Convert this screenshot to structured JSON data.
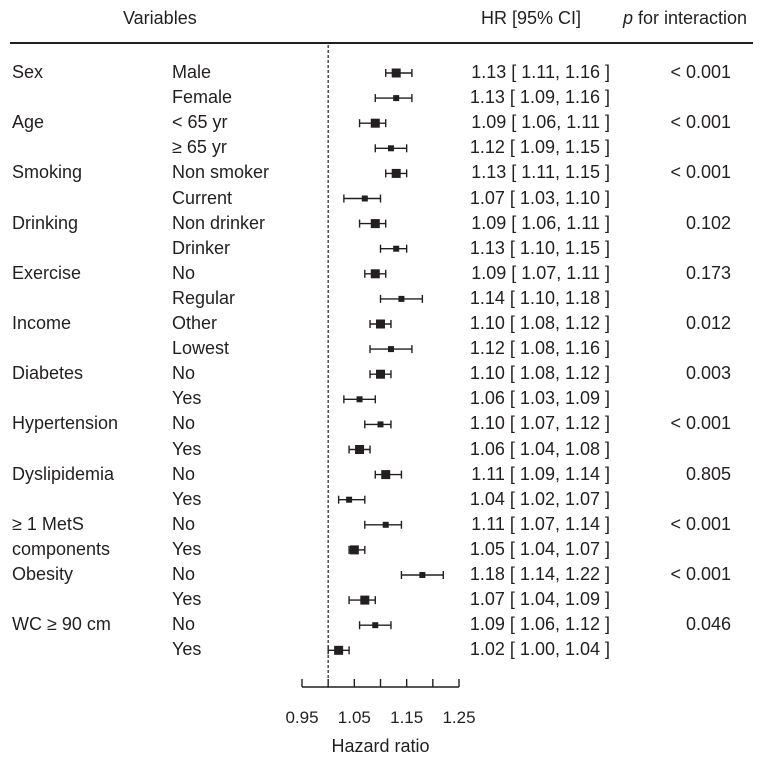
{
  "headers": {
    "variables": "Variables",
    "hr_ci": "HR [95% CI]",
    "p_italic": "p",
    "p_rest": " for interaction"
  },
  "chart_data": {
    "type": "forest",
    "xlabel": "Hazard ratio",
    "xlim": [
      0.95,
      1.25
    ],
    "ticks": [
      0.95,
      1.0,
      1.05,
      1.1,
      1.15,
      1.2,
      1.25
    ],
    "tick_labels": [
      "0.95",
      "1.05",
      "1.15",
      "1.25"
    ],
    "reference_line": 1.0,
    "rows": [
      {
        "variable": "Sex",
        "level": "Male",
        "hr": 1.13,
        "lo": 1.11,
        "hi": 1.16,
        "ci_text": "1.13 [ 1.11, 1.16 ]",
        "p": "< 0.001"
      },
      {
        "variable": "",
        "level": "Female",
        "hr": 1.13,
        "lo": 1.09,
        "hi": 1.16,
        "ci_text": "1.13 [ 1.09, 1.16 ]",
        "p": ""
      },
      {
        "variable": "Age",
        "level": "< 65 yr",
        "hr": 1.09,
        "lo": 1.06,
        "hi": 1.11,
        "ci_text": "1.09 [ 1.06, 1.11 ]",
        "p": "< 0.001"
      },
      {
        "variable": "",
        "level": "≥ 65 yr",
        "hr": 1.12,
        "lo": 1.09,
        "hi": 1.15,
        "ci_text": "1.12 [ 1.09, 1.15 ]",
        "p": ""
      },
      {
        "variable": "Smoking",
        "level": "Non smoker",
        "hr": 1.13,
        "lo": 1.11,
        "hi": 1.15,
        "ci_text": "1.13 [ 1.11, 1.15 ]",
        "p": "< 0.001"
      },
      {
        "variable": "",
        "level": "Current",
        "hr": 1.07,
        "lo": 1.03,
        "hi": 1.1,
        "ci_text": "1.07 [ 1.03, 1.10 ]",
        "p": ""
      },
      {
        "variable": "Drinking",
        "level": "Non drinker",
        "hr": 1.09,
        "lo": 1.06,
        "hi": 1.11,
        "ci_text": "1.09 [ 1.06, 1.11 ]",
        "p": "0.102"
      },
      {
        "variable": "",
        "level": "Drinker",
        "hr": 1.13,
        "lo": 1.1,
        "hi": 1.15,
        "ci_text": "1.13 [ 1.10, 1.15 ]",
        "p": ""
      },
      {
        "variable": "Exercise",
        "level": "No",
        "hr": 1.09,
        "lo": 1.07,
        "hi": 1.11,
        "ci_text": "1.09 [ 1.07, 1.11 ]",
        "p": "0.173"
      },
      {
        "variable": "",
        "level": "Regular",
        "hr": 1.14,
        "lo": 1.1,
        "hi": 1.18,
        "ci_text": "1.14 [ 1.10, 1.18 ]",
        "p": ""
      },
      {
        "variable": "Income",
        "level": "Other",
        "hr": 1.1,
        "lo": 1.08,
        "hi": 1.12,
        "ci_text": "1.10 [ 1.08, 1.12 ]",
        "p": "0.012"
      },
      {
        "variable": "",
        "level": "Lowest",
        "hr": 1.12,
        "lo": 1.08,
        "hi": 1.16,
        "ci_text": "1.12 [ 1.08, 1.16 ]",
        "p": ""
      },
      {
        "variable": "Diabetes",
        "level": "No",
        "hr": 1.1,
        "lo": 1.08,
        "hi": 1.12,
        "ci_text": "1.10 [ 1.08, 1.12 ]",
        "p": "0.003"
      },
      {
        "variable": "",
        "level": "Yes",
        "hr": 1.06,
        "lo": 1.03,
        "hi": 1.09,
        "ci_text": "1.06 [ 1.03, 1.09 ]",
        "p": ""
      },
      {
        "variable": "Hypertension",
        "level": "No",
        "hr": 1.1,
        "lo": 1.07,
        "hi": 1.12,
        "ci_text": "1.10 [ 1.07, 1.12 ]",
        "p": "< 0.001"
      },
      {
        "variable": "",
        "level": "Yes",
        "hr": 1.06,
        "lo": 1.04,
        "hi": 1.08,
        "ci_text": "1.06 [ 1.04, 1.08 ]",
        "p": ""
      },
      {
        "variable": "Dyslipidemia",
        "level": "No",
        "hr": 1.11,
        "lo": 1.09,
        "hi": 1.14,
        "ci_text": "1.11 [ 1.09, 1.14 ]",
        "p": "0.805"
      },
      {
        "variable": "",
        "level": "Yes",
        "hr": 1.04,
        "lo": 1.02,
        "hi": 1.07,
        "ci_text": "1.04 [ 1.02, 1.07 ]",
        "p": ""
      },
      {
        "variable": "≥ 1 MetS",
        "level": "No",
        "hr": 1.11,
        "lo": 1.07,
        "hi": 1.14,
        "ci_text": "1.11 [ 1.07, 1.14 ]",
        "p": "< 0.001"
      },
      {
        "variable": " components",
        "level": "Yes",
        "hr": 1.05,
        "lo": 1.04,
        "hi": 1.07,
        "ci_text": "1.05 [ 1.04, 1.07 ]",
        "p": ""
      },
      {
        "variable": "Obesity",
        "level": "No",
        "hr": 1.18,
        "lo": 1.14,
        "hi": 1.22,
        "ci_text": "1.18 [ 1.14, 1.22 ]",
        "p": "< 0.001"
      },
      {
        "variable": "",
        "level": "Yes",
        "hr": 1.07,
        "lo": 1.04,
        "hi": 1.09,
        "ci_text": "1.07 [ 1.04, 1.09 ]",
        "p": ""
      },
      {
        "variable": "WC ≥ 90 cm",
        "level": "No",
        "hr": 1.09,
        "lo": 1.06,
        "hi": 1.12,
        "ci_text": "1.09 [ 1.06, 1.12 ]",
        "p": "0.046"
      },
      {
        "variable": "",
        "level": "Yes",
        "hr": 1.02,
        "lo": 1.0,
        "hi": 1.04,
        "ci_text": "1.02 [ 1.00, 1.04 ]",
        "p": ""
      }
    ],
    "marker_size": [
      3,
      2,
      3,
      2,
      3,
      2,
      3,
      2,
      3,
      2,
      3,
      2,
      3,
      2,
      2,
      3,
      3,
      2,
      2,
      3,
      2,
      3,
      2,
      3
    ]
  }
}
